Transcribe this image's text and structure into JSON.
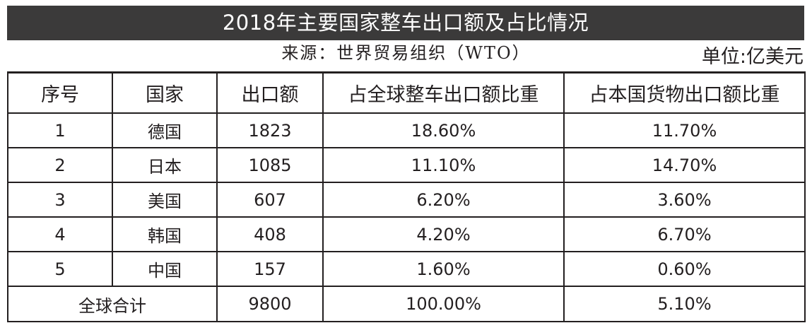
{
  "chart_data": {
    "type": "table",
    "title": "2018年主要国家整车出口额及占比情况",
    "source": "来源：世界贸易组织（WTO）",
    "unit": "单位:亿美元",
    "columns": [
      "序号",
      "国家",
      "出口额",
      "占全球整车出口额比重",
      "占本国货物出口额比重"
    ],
    "rows": [
      {
        "index": "1",
        "country": "德国",
        "export": "1823",
        "global_share": "18.60%",
        "domestic_share": "11.70%"
      },
      {
        "index": "2",
        "country": "日本",
        "export": "1085",
        "global_share": "11.10%",
        "domestic_share": "14.70%"
      },
      {
        "index": "3",
        "country": "美国",
        "export": "607",
        "global_share": "6.20%",
        "domestic_share": "3.60%"
      },
      {
        "index": "4",
        "country": "韩国",
        "export": "408",
        "global_share": "4.20%",
        "domestic_share": "6.70%"
      },
      {
        "index": "5",
        "country": "中国",
        "export": "157",
        "global_share": "1.60%",
        "domestic_share": "0.60%"
      }
    ],
    "total": {
      "label": "全球合计",
      "export": "9800",
      "global_share": "100.00%",
      "domestic_share": "5.10%"
    }
  },
  "colors": {
    "title_background": "#3b3a3a",
    "title_text": "#ffffff",
    "text": "#231f20",
    "border": "#231f20"
  }
}
